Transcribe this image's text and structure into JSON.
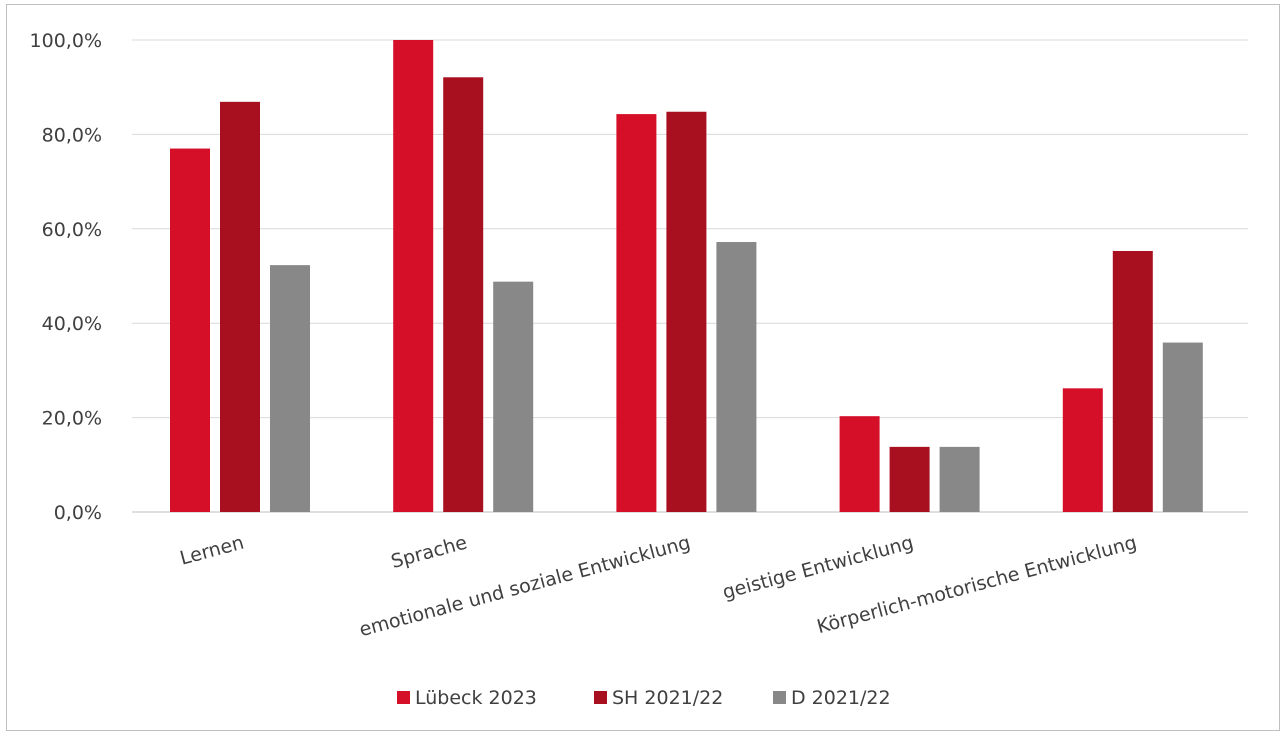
{
  "chart_data": {
    "type": "bar",
    "title": "",
    "xlabel": "",
    "ylabel": "",
    "categories": [
      "Lernen",
      "Sprache",
      "emotionale und soziale Entwicklung",
      "geistige Entwicklung",
      "Körperlich-motorische Entwicklung"
    ],
    "series": [
      {
        "name": "Lübeck 2023",
        "color": "#d40f27",
        "values": [
          77.0,
          100.0,
          84.3,
          20.3,
          26.2
        ]
      },
      {
        "name": "SH 2021/22",
        "color": "#a8101f",
        "values": [
          86.9,
          92.1,
          84.8,
          13.8,
          55.3
        ]
      },
      {
        "name": "D 2021/22",
        "color": "#888888",
        "values": [
          52.3,
          48.8,
          57.2,
          13.8,
          35.9
        ]
      }
    ],
    "ylim": [
      0,
      100
    ],
    "yticks": [
      "0,0%",
      "20,0%",
      "40,0%",
      "60,0%",
      "80,0%",
      "100,0%"
    ],
    "grid": true,
    "legend_position": "bottom"
  }
}
